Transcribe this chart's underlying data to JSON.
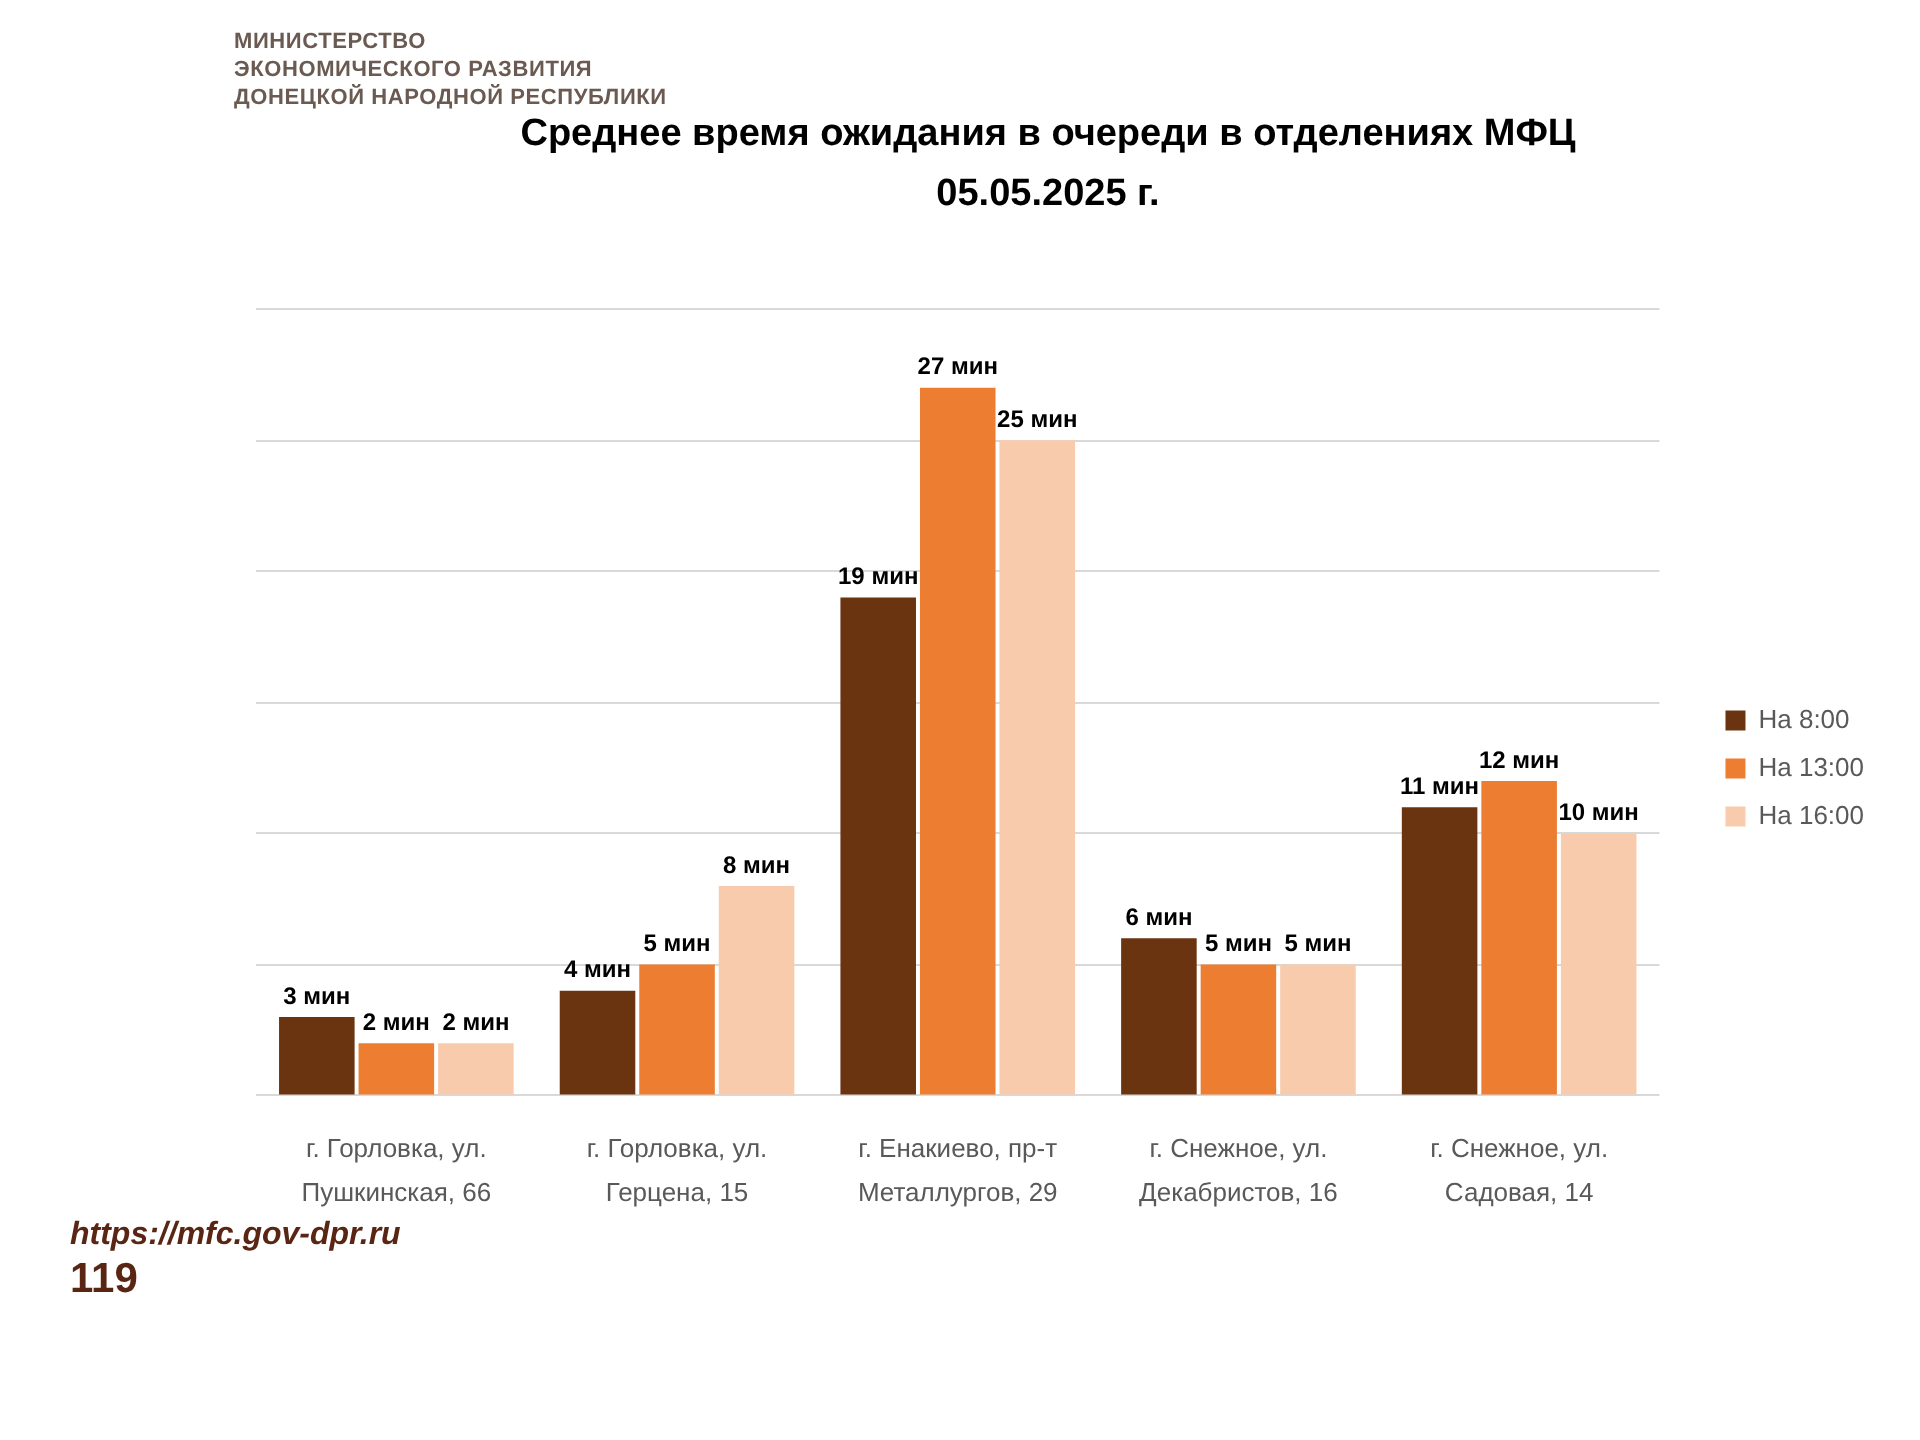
{
  "chart_data": {
    "type": "bar",
    "title": "Среднее время ожидания в очереди в отделениях МФЦ",
    "subtitle": "05.05.2025 г.",
    "categories": [
      "г. Горловка, ул. Пушкинская, 66",
      "г. Горловка, ул. Герцена, 15",
      "г. Енакиево, пр-т Металлургов, 29",
      "г. Снежное, ул. Декабристов, 16",
      "г. Снежное, ул. Садовая, 14"
    ],
    "series": [
      {
        "name": "На 8:00",
        "color": "#6b3410",
        "values": [
          3,
          4,
          19,
          6,
          11
        ],
        "value_labels": [
          "3 мин",
          "4 мин",
          "19 мин",
          "6 мин",
          "11 мин"
        ]
      },
      {
        "name": "На 13:00",
        "color": "#ed7d31",
        "values": [
          2,
          5,
          27,
          5,
          12
        ],
        "value_labels": [
          "2 мин",
          "5 мин",
          "27 мин",
          "5 мин",
          "12 мин"
        ]
      },
      {
        "name": "На 16:00",
        "color": "#f8cbad",
        "values": [
          2,
          8,
          25,
          5,
          10
        ],
        "value_labels": [
          "2 мин",
          "8 мин",
          "25 мин",
          "5 мин",
          "10 мин"
        ]
      }
    ],
    "ylim": [
      0,
      30
    ],
    "yticks": [
      {
        "value": 0,
        "label": null
      },
      {
        "value": 5,
        "label": null
      },
      {
        "value": 10,
        "label": null
      },
      {
        "value": 15,
        "label": null
      },
      {
        "value": 20,
        "label": null
      },
      {
        "value": 25,
        "label": null
      },
      {
        "value": 30,
        "label": null
      }
    ],
    "tick_labels": "x",
    "grid": "y",
    "legend": "right",
    "annotations": [
      "МИНИСТЕРСТВО\nЭКОНОМИЧЕСКОГО РАЗВИТИЯ\nДОНЕЦКОЙ НАРОДНОЙ РЕСПУБЛИКИ",
      "https://mfc.gov-dpr.ru",
      "119"
    ]
  }
}
